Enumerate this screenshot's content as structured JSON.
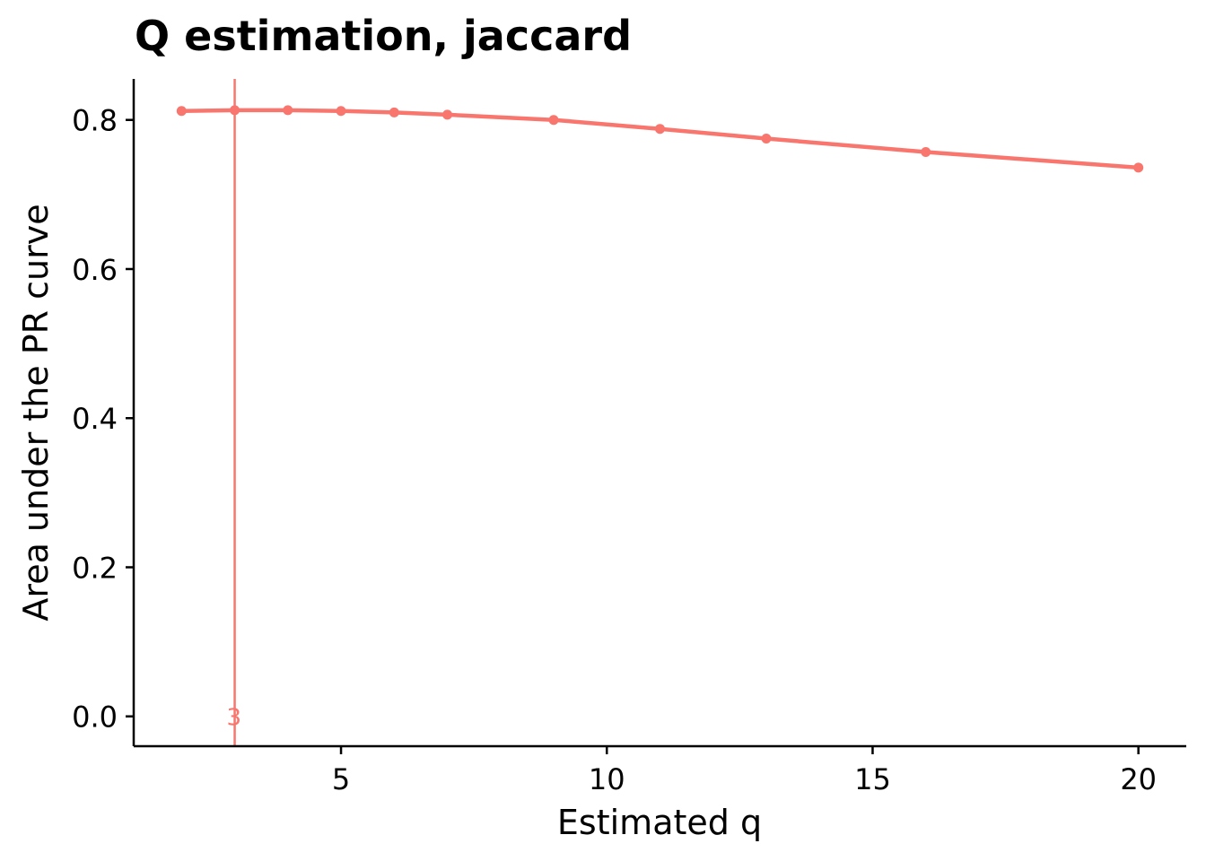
{
  "chart_data": {
    "type": "line",
    "title": "Q estimation, jaccard",
    "xlabel": "Estimated q",
    "ylabel": "Area under the PR curve",
    "x": [
      2,
      3,
      4,
      5,
      6,
      7,
      9,
      11,
      13,
      16,
      20
    ],
    "series": [
      {
        "values": [
          0.812,
          0.813,
          0.813,
          0.812,
          0.81,
          0.807,
          0.8,
          0.788,
          0.775,
          0.757,
          0.736
        ]
      }
    ],
    "xlim": [
      1.1,
      20.9
    ],
    "ylim": [
      -0.04,
      0.855
    ],
    "xticks": [
      5,
      10,
      15,
      20
    ],
    "xtick_labels": [
      "5",
      "10",
      "15",
      "20"
    ],
    "yticks": [
      0.0,
      0.2,
      0.4,
      0.6,
      0.8
    ],
    "ytick_labels": [
      "0.0",
      "0.2",
      "0.4",
      "0.6",
      "0.8"
    ],
    "vline": {
      "x": 3,
      "label": "3"
    },
    "grid": false,
    "legend": "none",
    "colors": {
      "series": "#F8766D",
      "axis": "#000000"
    }
  }
}
